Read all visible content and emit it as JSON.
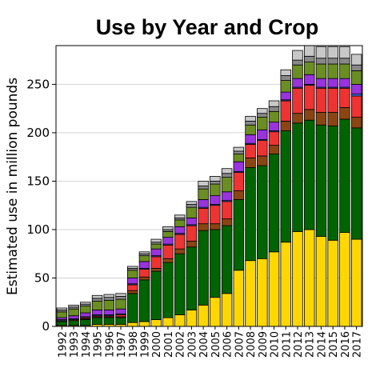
{
  "chart_data": {
    "type": "bar",
    "stacked": true,
    "title": "Use by Year and Crop",
    "xlabel": "",
    "ylabel": "Estimated use in million pounds",
    "ylim": [
      0,
      290
    ],
    "yticks": [
      0,
      50,
      100,
      150,
      200,
      250
    ],
    "grid": "horizontal",
    "categories": [
      "1992",
      "1993",
      "1994",
      "1995",
      "1996",
      "1997",
      "1998",
      "1999",
      "2000",
      "2001",
      "2002",
      "2003",
      "2004",
      "2005",
      "2006",
      "2007",
      "2008",
      "2009",
      "2010",
      "2011",
      "2012",
      "2013",
      "2014",
      "2015",
      "2016",
      "2017"
    ],
    "series": [
      {
        "color": "#FFD700",
        "values": [
          1,
          1,
          1,
          2,
          2,
          2,
          4,
          5,
          7,
          9,
          12,
          17,
          22,
          30,
          34,
          58,
          68,
          70,
          77,
          87,
          98,
          100,
          93,
          89,
          97,
          90
        ]
      },
      {
        "color": "#006400",
        "values": [
          4,
          5,
          6,
          7,
          7,
          7,
          30,
          43,
          50,
          57,
          63,
          65,
          77,
          70,
          70,
          73,
          96,
          96,
          101,
          115,
          112,
          113,
          115,
          118,
          117,
          115
        ]
      },
      {
        "color": "#8B4513",
        "values": [
          1,
          1,
          1,
          1,
          1,
          1,
          3,
          3,
          3,
          4,
          5,
          6,
          7,
          6,
          7,
          9,
          10,
          10,
          9,
          10,
          10,
          11,
          13,
          14,
          12,
          11
        ]
      },
      {
        "color": "#EE3333",
        "values": [
          0,
          0,
          1,
          1,
          1,
          2,
          6,
          8,
          12,
          14,
          15,
          16,
          16,
          19,
          18,
          19,
          14,
          16,
          14,
          21,
          26,
          25,
          25,
          25,
          20,
          22
        ]
      },
      {
        "color": "#4477EE",
        "values": [
          1,
          1,
          1,
          1,
          1,
          1,
          1,
          1,
          1,
          1,
          1,
          1,
          1,
          1,
          1,
          1,
          1,
          1,
          1,
          1,
          1,
          1,
          1,
          1,
          1,
          2
        ]
      },
      {
        "color": "#9933DD",
        "values": [
          2,
          3,
          4,
          5,
          5,
          5,
          6,
          7,
          7,
          7,
          7,
          7,
          8,
          9,
          9,
          10,
          9,
          10,
          9,
          8,
          9,
          10,
          9,
          9,
          9,
          10
        ]
      },
      {
        "color": "#6B8E23",
        "values": [
          6,
          7,
          7,
          9,
          10,
          10,
          8,
          6,
          5,
          6,
          7,
          11,
          11,
          12,
          15,
          8,
          10,
          13,
          11,
          12,
          14,
          13,
          15,
          15,
          15,
          14
        ]
      },
      {
        "color": "#888888",
        "values": [
          2,
          2,
          2,
          3,
          3,
          3,
          2,
          2,
          2,
          2,
          2,
          3,
          3,
          3,
          4,
          3,
          4,
          4,
          5,
          5,
          5,
          6,
          6,
          6,
          6,
          6
        ]
      },
      {
        "color": "#C8C8C8",
        "values": [
          2,
          2,
          2,
          3,
          3,
          3,
          2,
          2,
          3,
          3,
          3,
          3,
          5,
          5,
          5,
          4,
          5,
          5,
          6,
          6,
          10,
          11,
          12,
          12,
          12,
          11
        ]
      }
    ]
  }
}
